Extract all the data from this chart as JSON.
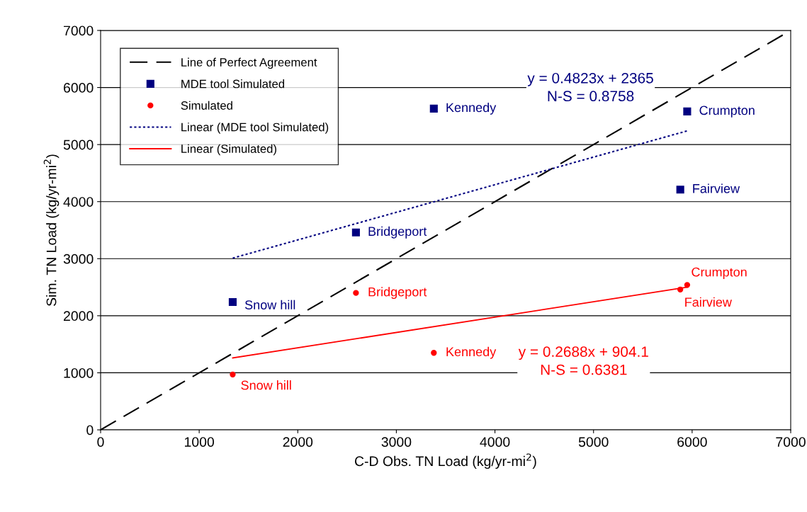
{
  "chart_data": {
    "type": "scatter",
    "xlabel": "C-D Obs. TN Load (kg/yr-mi$^{2}$)",
    "ylabel": "Sim. TN Load (kg/yr-mi$^{2}$)",
    "xlim": [
      0,
      7000
    ],
    "ylim": [
      0,
      7000
    ],
    "xticks": [
      0,
      1000,
      2000,
      3000,
      4000,
      5000,
      6000,
      7000
    ],
    "yticks": [
      0,
      1000,
      2000,
      3000,
      4000,
      5000,
      6000,
      7000
    ],
    "grid": "y",
    "legend": "top left",
    "series": [
      {
        "name": "Line of Perfect Agreement",
        "type": "line",
        "color": "#000000",
        "line_style": "dashed",
        "marker": "none",
        "x": [
          0,
          7000
        ],
        "values": [
          0,
          7000
        ]
      },
      {
        "name": "MDE tool Simulated",
        "color": "#000080",
        "marker": "square",
        "x": [
          1340,
          2590,
          3380,
          5950,
          5880
        ],
        "values": [
          2240,
          3460,
          5630,
          5580,
          4210
        ]
      },
      {
        "name": "Simulated",
        "color": "#ff0000",
        "marker": "circle",
        "x": [
          1340,
          2590,
          3380,
          5950,
          5880
        ],
        "values": [
          970,
          2400,
          1350,
          2540,
          2460
        ]
      },
      {
        "name": "Linear (MDE tool Simulated)",
        "type": "line",
        "color": "#000080",
        "line_style": "dotted",
        "marker": "none",
        "x": [
          1340,
          5950
        ],
        "values": [
          3010,
          5240
        ]
      },
      {
        "name": "Linear (Simulated)",
        "type": "line",
        "color": "#ff0000",
        "line_style": "solid",
        "marker": "none",
        "x": [
          1340,
          5950
        ],
        "values": [
          1260,
          2500
        ]
      }
    ],
    "annotations": [
      {
        "text": "Snow hill",
        "x": 1340,
        "y": 2240
      },
      {
        "text": "Bridgeport",
        "x": 2590,
        "y": 3460
      },
      {
        "text": "Kennedy",
        "x": 3380,
        "y": 5630
      },
      {
        "text": "Crumpton",
        "x": 5950,
        "y": 5580
      },
      {
        "text": "Fairview",
        "x": 5880,
        "y": 4210
      },
      {
        "text": "Snow hill",
        "x": 1340,
        "y": 970
      },
      {
        "text": "Bridgeport",
        "x": 2590,
        "y": 2400
      },
      {
        "text": "Kennedy",
        "x": 3380,
        "y": 1350
      },
      {
        "text": "Crumpton",
        "x": 5950,
        "y": 2540
      },
      {
        "text": "Fairview",
        "x": 5880,
        "y": 2460
      },
      "y = 0.4823x + 2365\nN-S = 0.8758",
      "y = 0.2688x + 904.1\nN-S = 0.6381"
    ]
  }
}
